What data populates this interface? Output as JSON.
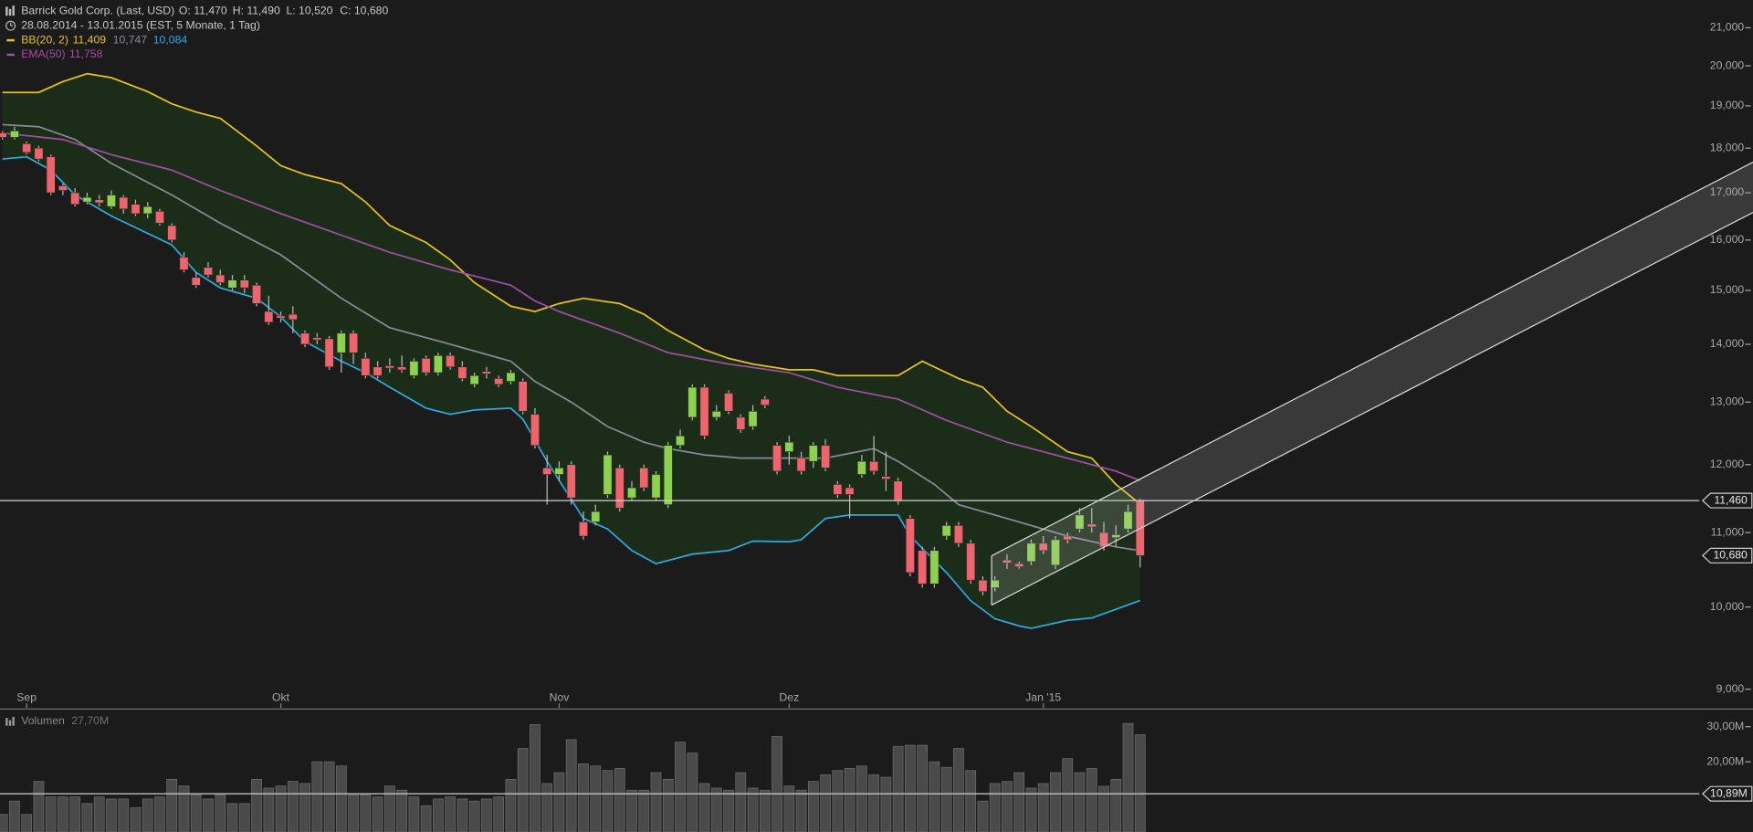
{
  "chart_data": [
    {
      "type": "candlestick",
      "title": "Barrick Gold Corp. (Last, USD)",
      "header_values": [
        "O: 11,470",
        "H: 11,490",
        "L: 10,520",
        "C: 10,680"
      ],
      "subtitle": "28.08.2014 - 13.01.2015 (EST, 5 Monate, 1 Tag)",
      "x": [
        0,
        1,
        2,
        3,
        4,
        5,
        6,
        7,
        8,
        9,
        10,
        11,
        12,
        13,
        14,
        15,
        16,
        17,
        18,
        19,
        20,
        21,
        22,
        23,
        24,
        25,
        26,
        27,
        28,
        29,
        30,
        31,
        32,
        33,
        34,
        35,
        36,
        37,
        38,
        39,
        40,
        41,
        42,
        43,
        44,
        45,
        46,
        47,
        48,
        49,
        50,
        51,
        52,
        53,
        54,
        55,
        56,
        57,
        58,
        59,
        60,
        61,
        62,
        63,
        64,
        65,
        66,
        67,
        68,
        69,
        70,
        71,
        72,
        73,
        74,
        75,
        76,
        77,
        78,
        79,
        80,
        81,
        82,
        83,
        84,
        85,
        86,
        87,
        88,
        89,
        90,
        91,
        92,
        93,
        94
      ],
      "xlim": [
        -0.2,
        140.2
      ],
      "xticks": [
        {
          "value": 2,
          "label": "Sep"
        },
        {
          "value": 23,
          "label": "Okt"
        },
        {
          "value": 46,
          "label": "Nov"
        },
        {
          "value": 65,
          "label": "Dez"
        },
        {
          "value": 86,
          "label": "Jan '15"
        }
      ],
      "ylim": [
        8.8,
        21.76
      ],
      "log_scale": true,
      "yticks": [
        {
          "value": 21,
          "label": "21,000"
        },
        {
          "value": 20,
          "label": "20,000"
        },
        {
          "value": 19,
          "label": "19,000"
        },
        {
          "value": 18,
          "label": "18,000"
        },
        {
          "value": 17,
          "label": "17,000"
        },
        {
          "value": 16,
          "label": "16,000"
        },
        {
          "value": 15,
          "label": "15,000"
        },
        {
          "value": 14,
          "label": "14,000"
        },
        {
          "value": 13,
          "label": "13,000"
        },
        {
          "value": 12,
          "label": "12,000"
        },
        {
          "value": 11,
          "label": "11,000"
        },
        {
          "value": 10,
          "label": "10,000"
        },
        {
          "value": 9,
          "label": "9,000"
        }
      ],
      "open": [
        18.35,
        18.25,
        18.1,
        18.0,
        17.8,
        17.15,
        17.0,
        16.8,
        16.85,
        16.7,
        16.9,
        16.75,
        16.55,
        16.6,
        16.3,
        15.65,
        15.25,
        15.45,
        15.3,
        15.05,
        15.2,
        15.1,
        14.6,
        14.52,
        14.55,
        14.2,
        14.12,
        14.1,
        13.85,
        14.2,
        13.75,
        13.6,
        13.62,
        13.6,
        13.45,
        13.75,
        13.5,
        13.8,
        13.6,
        13.3,
        13.52,
        13.4,
        13.35,
        13.35,
        12.8,
        11.95,
        11.85,
        12.0,
        11.15,
        11.15,
        11.55,
        11.95,
        11.5,
        11.95,
        11.5,
        11.4,
        12.3,
        12.75,
        13.25,
        12.75,
        13.15,
        12.75,
        12.6,
        13.05,
        12.3,
        12.2,
        12.1,
        12.05,
        12.3,
        11.7,
        11.65,
        11.85,
        12.05,
        11.82,
        11.75,
        11.2,
        10.75,
        10.3,
        10.95,
        11.1,
        10.85,
        10.35,
        10.25,
        10.62,
        10.57,
        10.6,
        10.85,
        10.55,
        10.95,
        11.05,
        11.12,
        11.0,
        10.93,
        11.05,
        11.47
      ],
      "high": [
        18.4,
        18.5,
        18.15,
        18.05,
        17.85,
        17.2,
        17.1,
        17.0,
        16.95,
        17.05,
        16.95,
        16.85,
        16.8,
        16.65,
        16.35,
        15.75,
        15.35,
        15.55,
        15.4,
        15.3,
        15.3,
        15.15,
        14.9,
        14.6,
        14.7,
        14.25,
        14.2,
        14.15,
        14.25,
        14.25,
        13.85,
        13.7,
        13.75,
        13.8,
        13.75,
        13.8,
        13.85,
        13.85,
        13.7,
        13.5,
        13.6,
        13.45,
        13.55,
        13.4,
        12.9,
        12.15,
        12.05,
        12.05,
        11.3,
        11.4,
        12.2,
        12.0,
        11.75,
        12.0,
        11.9,
        12.35,
        12.55,
        13.3,
        13.3,
        12.95,
        13.2,
        12.8,
        12.95,
        13.1,
        12.35,
        12.45,
        12.2,
        12.35,
        12.4,
        11.75,
        11.7,
        12.15,
        12.45,
        12.2,
        11.8,
        11.25,
        10.8,
        10.8,
        11.15,
        11.15,
        10.9,
        10.4,
        10.4,
        10.7,
        10.6,
        10.9,
        10.95,
        10.95,
        11.0,
        11.35,
        11.35,
        11.15,
        11.1,
        11.4,
        11.49
      ],
      "low": [
        18.2,
        18.2,
        17.85,
        17.7,
        16.95,
        16.95,
        16.7,
        16.75,
        16.7,
        16.65,
        16.55,
        16.5,
        16.45,
        16.3,
        15.95,
        15.35,
        15.05,
        15.25,
        15.1,
        15.0,
        14.95,
        14.7,
        14.35,
        14.4,
        14.2,
        13.95,
        14.0,
        13.55,
        13.5,
        13.65,
        13.4,
        13.4,
        13.5,
        13.5,
        13.4,
        13.45,
        13.45,
        13.55,
        13.35,
        13.25,
        13.4,
        13.25,
        13.3,
        12.8,
        12.25,
        11.4,
        11.75,
        11.4,
        10.9,
        11.1,
        11.5,
        11.3,
        11.45,
        11.6,
        11.45,
        11.35,
        12.25,
        12.7,
        12.4,
        12.7,
        12.8,
        12.5,
        12.55,
        12.9,
        11.85,
        12.0,
        11.85,
        11.95,
        11.9,
        11.5,
        11.2,
        11.8,
        11.85,
        11.6,
        11.4,
        10.4,
        10.25,
        10.25,
        10.9,
        10.8,
        10.3,
        10.15,
        10.2,
        10.5,
        10.5,
        10.55,
        10.7,
        10.5,
        10.85,
        11.0,
        11.0,
        10.75,
        10.8,
        11.0,
        10.52
      ],
      "close": [
        18.25,
        18.4,
        17.9,
        17.75,
        17.0,
        17.05,
        16.75,
        16.9,
        16.78,
        16.95,
        16.65,
        16.55,
        16.7,
        16.35,
        16.0,
        15.4,
        15.1,
        15.3,
        15.15,
        15.2,
        15.05,
        14.75,
        14.4,
        14.48,
        14.45,
        14.0,
        14.08,
        13.6,
        14.2,
        13.85,
        13.45,
        13.45,
        13.58,
        13.55,
        13.7,
        13.5,
        13.8,
        13.6,
        13.4,
        13.45,
        13.48,
        13.3,
        13.5,
        12.85,
        12.3,
        11.85,
        11.95,
        11.5,
        10.95,
        11.3,
        12.15,
        11.35,
        11.65,
        11.65,
        11.85,
        12.3,
        12.45,
        13.25,
        12.45,
        12.85,
        12.85,
        12.55,
        12.85,
        12.95,
        11.9,
        12.35,
        11.9,
        12.3,
        11.95,
        11.55,
        11.55,
        12.05,
        11.9,
        11.78,
        11.45,
        10.45,
        10.3,
        10.75,
        11.1,
        10.85,
        10.35,
        10.2,
        10.35,
        10.58,
        10.53,
        10.85,
        10.75,
        10.9,
        10.9,
        11.25,
        11.08,
        10.8,
        10.97,
        11.3,
        10.68
      ],
      "up_color": "#8cd24e",
      "down_color": "#ef636c",
      "band_fill": "#1b2d19",
      "series": [
        {
          "name": "BB(20, 2)",
          "color": "#e9c21f",
          "value_label": "11,409",
          "x": [
            0,
            3,
            5,
            7,
            9,
            12,
            14,
            16,
            18,
            21,
            23,
            25,
            28,
            30,
            32,
            35,
            37,
            39,
            42,
            44,
            46,
            48,
            51,
            53,
            55,
            58,
            60,
            62,
            65,
            67,
            69,
            72,
            74,
            76,
            79,
            81,
            83,
            85,
            88,
            90,
            92,
            94
          ],
          "values": [
            19.33,
            19.33,
            19.6,
            19.8,
            19.7,
            19.35,
            19.05,
            18.85,
            18.7,
            18.05,
            17.6,
            17.4,
            17.2,
            16.8,
            16.3,
            15.95,
            15.6,
            15.15,
            14.7,
            14.6,
            14.75,
            14.85,
            14.75,
            14.55,
            14.25,
            13.9,
            13.75,
            13.65,
            13.55,
            13.55,
            13.45,
            13.45,
            13.45,
            13.7,
            13.4,
            13.25,
            12.85,
            12.6,
            12.2,
            12.1,
            11.7,
            11.409
          ]
        },
        {
          "color": "#8a8a99",
          "value_label": "10,747",
          "x": [
            0,
            3,
            6,
            9,
            14,
            18,
            23,
            28,
            32,
            37,
            42,
            44,
            47,
            50,
            53,
            55,
            58,
            61,
            65,
            68,
            72,
            74,
            77,
            79,
            83,
            88,
            92,
            94
          ],
          "values": [
            18.55,
            18.5,
            18.2,
            17.65,
            16.95,
            16.35,
            15.7,
            14.85,
            14.3,
            14.0,
            13.7,
            13.35,
            13.0,
            12.6,
            12.35,
            12.25,
            12.15,
            12.1,
            12.1,
            12.1,
            12.25,
            12.05,
            11.7,
            11.4,
            11.2,
            10.95,
            10.8,
            10.747
          ]
        },
        {
          "color": "#2ea9e2",
          "value_label": "10,084",
          "x": [
            0,
            2,
            4,
            6,
            9,
            14,
            16,
            18,
            21,
            23,
            25,
            28,
            30,
            32,
            35,
            37,
            39,
            42,
            43,
            45,
            48,
            50,
            52,
            54,
            57,
            60,
            62,
            65,
            66,
            68,
            70,
            72,
            74,
            75,
            78,
            80,
            82,
            84,
            85,
            88,
            90,
            92,
            94
          ],
          "values": [
            17.75,
            17.8,
            17.5,
            16.95,
            16.5,
            15.9,
            15.35,
            15.05,
            14.85,
            14.5,
            14.05,
            13.7,
            13.5,
            13.25,
            12.9,
            12.8,
            12.87,
            12.9,
            12.72,
            12.05,
            11.2,
            11.05,
            10.75,
            10.57,
            10.7,
            10.75,
            10.88,
            10.87,
            10.9,
            11.2,
            11.25,
            11.25,
            11.25,
            10.95,
            10.45,
            10.08,
            9.85,
            9.76,
            9.73,
            9.83,
            9.86,
            9.97,
            10.084
          ]
        },
        {
          "name": "EMA(50)",
          "color": "#a24ea4",
          "value_label": "11,758",
          "x": [
            0,
            5,
            9,
            14,
            18,
            23,
            28,
            32,
            37,
            42,
            44,
            46,
            51,
            55,
            60,
            65,
            69,
            74,
            78,
            83,
            88,
            92,
            94
          ],
          "values": [
            18.35,
            18.2,
            17.85,
            17.5,
            17.05,
            16.55,
            16.1,
            15.75,
            15.4,
            15.1,
            14.8,
            14.6,
            14.2,
            13.85,
            13.65,
            13.5,
            13.25,
            13.05,
            12.7,
            12.35,
            12.1,
            11.9,
            11.758
          ]
        }
      ],
      "hline": {
        "value": 11.46,
        "label": "11,460"
      },
      "last_price": {
        "value": 10.68,
        "label": "10,680"
      }
    },
    {
      "type": "bar",
      "title": "Volumen",
      "legend_value": {
        "value": 27.7,
        "label": "27,70M"
      },
      "color": "#4a4a4a",
      "values": [
        5.0,
        8.8,
        5.0,
        14.4,
        10.0,
        10.0,
        10.0,
        8.1,
        10.0,
        9.4,
        9.4,
        6.9,
        9.4,
        10.0,
        15.0,
        13.1,
        10.6,
        9.4,
        10.6,
        8.1,
        8.1,
        15.0,
        12.5,
        13.1,
        14.4,
        13.8,
        20.0,
        20.0,
        18.8,
        10.6,
        10.6,
        10.0,
        13.1,
        11.9,
        10.0,
        7.5,
        9.4,
        10.0,
        9.4,
        8.8,
        9.4,
        10.0,
        15.0,
        23.8,
        30.6,
        13.8,
        16.9,
        26.3,
        19.4,
        18.8,
        17.5,
        18.1,
        11.9,
        11.9,
        16.9,
        15.0,
        25.6,
        22.5,
        13.8,
        12.5,
        11.9,
        16.9,
        12.5,
        11.9,
        27.2,
        13.1,
        11.9,
        14.4,
        16.3,
        17.5,
        18.1,
        18.8,
        16.3,
        15.6,
        24.4,
        24.7,
        24.7,
        20.0,
        18.4,
        23.8,
        17.5,
        8.8,
        13.8,
        14.4,
        16.9,
        12.5,
        13.8,
        16.9,
        20.9,
        16.9,
        18.1,
        13.0,
        15.0,
        30.9,
        27.7
      ],
      "ylim": [
        0,
        34.4
      ],
      "yticks": [
        {
          "value": 30,
          "label": "30,00M"
        },
        {
          "value": 20,
          "label": "20,00M"
        }
      ],
      "hline": {
        "value": 10.89,
        "label": "10,89M"
      }
    }
  ]
}
